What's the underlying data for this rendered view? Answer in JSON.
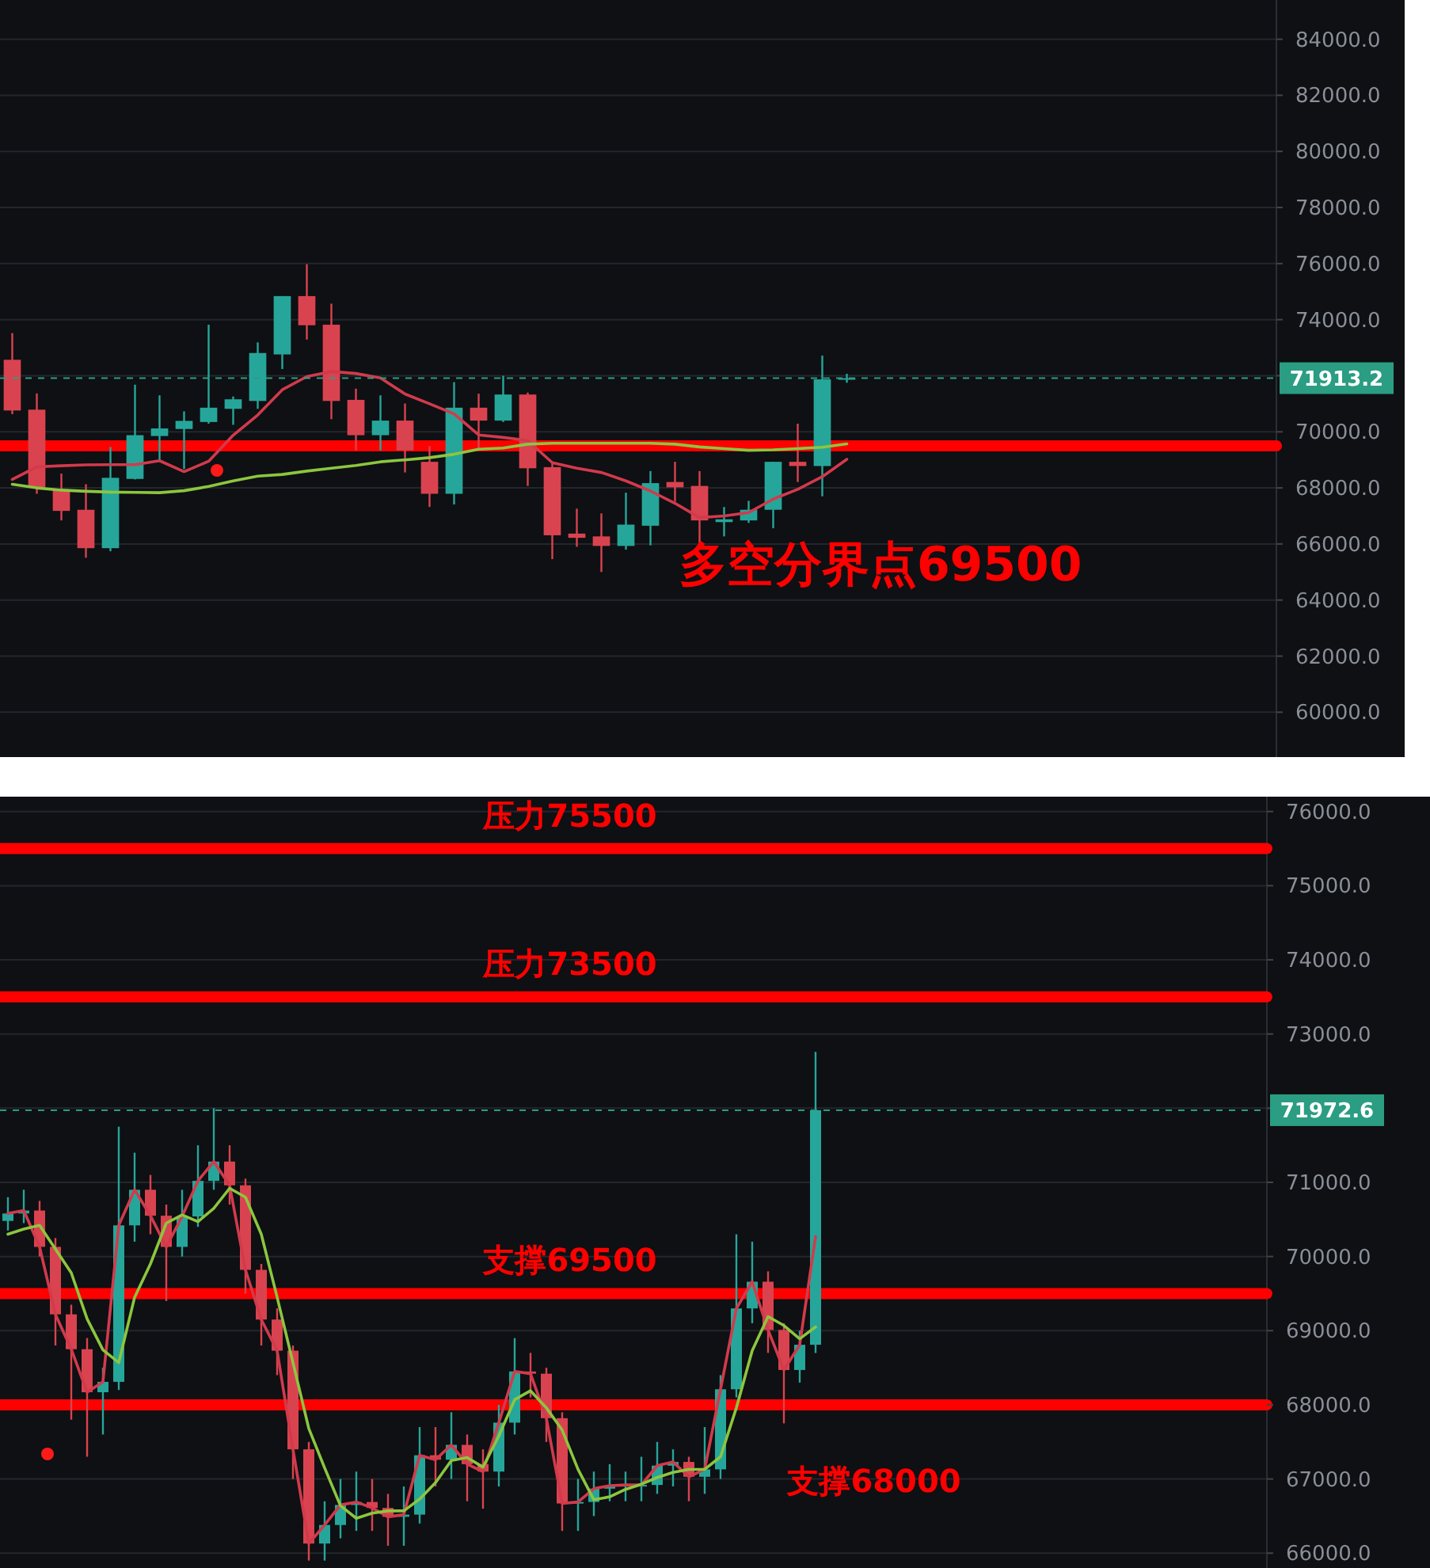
{
  "chart_data": [
    {
      "type": "candlestick",
      "categories": [
        null,
        null,
        null,
        null,
        null,
        null,
        null,
        null,
        null,
        null,
        null,
        null,
        null,
        null,
        null,
        null,
        null,
        null,
        null,
        null,
        null,
        null,
        null,
        null,
        null,
        null,
        null,
        null,
        null,
        null,
        null,
        null,
        null,
        null,
        null,
        null,
        null,
        null,
        null,
        null,
        null,
        null,
        null,
        null,
        null,
        null,
        null,
        null,
        null,
        null,
        null,
        null
      ],
      "ohlc": [
        [
          72570,
          73520,
          70630,
          70760
        ],
        [
          70790,
          71370,
          67790,
          68030
        ],
        [
          67940,
          68510,
          66840,
          67180
        ],
        [
          67220,
          68130,
          65510,
          65850
        ],
        [
          65850,
          69460,
          65740,
          68360
        ],
        [
          68320,
          71680,
          68300,
          69880
        ],
        [
          69850,
          71300,
          68930,
          70120
        ],
        [
          70100,
          70730,
          68670,
          70390
        ],
        [
          70350,
          73820,
          70290,
          70860
        ],
        [
          70820,
          71260,
          70250,
          71160
        ],
        [
          71100,
          73190,
          70820,
          72810
        ],
        [
          72760,
          74840,
          72240,
          74840
        ],
        [
          74840,
          75980,
          73290,
          73800
        ],
        [
          73820,
          74570,
          70450,
          71100
        ],
        [
          71140,
          71540,
          69340,
          69880
        ],
        [
          69880,
          71300,
          69340,
          70400
        ],
        [
          70400,
          71010,
          68550,
          69340
        ],
        [
          68930,
          69490,
          67320,
          67790
        ],
        [
          67790,
          71770,
          67410,
          70860
        ],
        [
          70860,
          71360,
          69340,
          70400
        ],
        [
          70400,
          72000,
          70350,
          71330
        ],
        [
          71330,
          71400,
          68070,
          68700
        ],
        [
          68740,
          68930,
          65460,
          66310
        ],
        [
          66370,
          67260,
          65900,
          66220
        ],
        [
          66270,
          67090,
          65000,
          65930
        ],
        [
          65930,
          67830,
          65800,
          66690
        ],
        [
          66650,
          68600,
          65950,
          68170
        ],
        [
          68210,
          68930,
          67510,
          68020
        ],
        [
          68070,
          68600,
          65900,
          66840
        ],
        [
          66780,
          67320,
          66270,
          66880
        ],
        [
          66840,
          67540,
          66750,
          67220
        ],
        [
          67220,
          68930,
          66560,
          68930
        ],
        [
          68930,
          70290,
          68210,
          68780
        ],
        [
          68780,
          72720,
          67700,
          71870
        ],
        [
          71880,
          72070,
          71750,
          71913.2
        ],
        null,
        null,
        null,
        null,
        null,
        null,
        null,
        null,
        null,
        null,
        null,
        null,
        null,
        null,
        null,
        null,
        null
      ],
      "series": [
        {
          "type": "line",
          "color": "#d23a4c",
          "values": [
            68300,
            68750,
            68790,
            68820,
            68830,
            68830,
            68970,
            68580,
            68950,
            69880,
            70600,
            71500,
            71970,
            72150,
            72080,
            71920,
            71350,
            71000,
            70640,
            69890,
            69800,
            69690,
            68900,
            68700,
            68550,
            68250,
            67890,
            67450,
            66940,
            67000,
            67120,
            67600,
            67950,
            68400,
            69020,
            null,
            null,
            null,
            null,
            null,
            null,
            null,
            null,
            null,
            null,
            null,
            null,
            null,
            null,
            null,
            null,
            null
          ]
        },
        {
          "type": "line",
          "color": "#8cc63f",
          "values": [
            68130,
            68000,
            67920,
            67880,
            67850,
            67840,
            67830,
            67900,
            68050,
            68250,
            68420,
            68480,
            68600,
            68700,
            68800,
            68930,
            69000,
            69080,
            69200,
            69380,
            69420,
            69560,
            69590,
            69590,
            69590,
            69590,
            69590,
            69560,
            69460,
            69400,
            69340,
            69360,
            69400,
            69450,
            69570,
            null,
            null,
            null,
            null,
            null,
            null,
            null,
            null,
            null,
            null,
            null,
            null,
            null,
            null,
            null,
            null,
            null
          ]
        }
      ],
      "ylim": [
        58400,
        85400
      ],
      "yticks": [
        {
          "value": 60000,
          "label": "60000.0"
        },
        {
          "value": 62000,
          "label": "62000.0"
        },
        {
          "value": 64000,
          "label": "64000.0"
        },
        {
          "value": 66000,
          "label": "66000.0"
        },
        {
          "value": 68000,
          "label": "68000.0"
        },
        {
          "value": 70000,
          "label": "70000.0"
        },
        {
          "value": 72000,
          "label": null
        },
        {
          "value": 74000,
          "label": "74000.0"
        },
        {
          "value": 76000,
          "label": "76000.0"
        },
        {
          "value": 78000,
          "label": "78000.0"
        },
        {
          "value": 80000,
          "label": "80000.0"
        },
        {
          "value": 82000,
          "label": "82000.0"
        },
        {
          "value": 84000,
          "label": "84000.0"
        }
      ],
      "ref_lines": [
        {
          "axis": "y",
          "value": 71913.2,
          "label": "71913.2",
          "color": "#2a9d82",
          "line_style": "dashed"
        },
        {
          "axis": "y",
          "value": 69500,
          "label": "多空分界点69500",
          "color": "#ff0000",
          "line_style": "solid"
        }
      ],
      "grid": "y",
      "tick_labels": "y"
    },
    {
      "type": "candlestick",
      "categories": [
        null,
        null,
        null,
        null,
        null,
        null,
        null,
        null,
        null,
        null,
        null,
        null,
        null,
        null,
        null,
        null,
        null,
        null,
        null,
        null,
        null,
        null,
        null,
        null,
        null,
        null,
        null,
        null,
        null,
        null,
        null,
        null,
        null,
        null,
        null,
        null,
        null,
        null,
        null,
        null,
        null,
        null,
        null,
        null,
        null,
        null,
        null,
        null,
        null,
        null,
        null,
        null,
        null,
        null,
        null,
        null,
        null,
        null,
        null,
        null,
        null,
        null,
        null,
        null,
        null,
        null,
        null,
        null,
        null,
        null,
        null,
        null,
        null,
        null,
        null,
        null,
        null,
        null,
        null,
        null
      ],
      "ohlc": [
        [
          70480,
          70800,
          70350,
          70580
        ],
        [
          70580,
          70900,
          70450,
          70620
        ],
        [
          70620,
          70750,
          70000,
          70130
        ],
        [
          70130,
          70250,
          68800,
          69220
        ],
        [
          69220,
          69350,
          67800,
          68750
        ],
        [
          68750,
          68900,
          67300,
          68170
        ],
        [
          68170,
          68500,
          67600,
          68310
        ],
        [
          68310,
          71750,
          68200,
          70420
        ],
        [
          70420,
          71400,
          70200,
          70900
        ],
        [
          70900,
          71100,
          70300,
          70550
        ],
        [
          70550,
          70700,
          69400,
          70130
        ],
        [
          70130,
          70900,
          70000,
          70540
        ],
        [
          70540,
          71500,
          70400,
          71020
        ],
        [
          71020,
          72000,
          70900,
          71280
        ],
        [
          71280,
          71500,
          70700,
          70960
        ],
        [
          70960,
          71050,
          69500,
          69820
        ],
        [
          69820,
          69900,
          68800,
          69150
        ],
        [
          69150,
          69300,
          68400,
          68730
        ],
        [
          68730,
          68800,
          67000,
          67400
        ],
        [
          67400,
          67500,
          65900,
          66130
        ],
        [
          66130,
          66700,
          65900,
          66380
        ],
        [
          66380,
          67000,
          66200,
          66650
        ],
        [
          66650,
          67100,
          66300,
          66690
        ],
        [
          66690,
          67000,
          66300,
          66610
        ],
        [
          66610,
          66800,
          66100,
          66490
        ],
        [
          66490,
          66900,
          66100,
          66520
        ],
        [
          66520,
          67700,
          66400,
          67320
        ],
        [
          67320,
          67700,
          66900,
          67260
        ],
        [
          67260,
          67900,
          67000,
          67460
        ],
        [
          67460,
          67600,
          66700,
          67200
        ],
        [
          67200,
          67400,
          66600,
          67100
        ],
        [
          67100,
          68000,
          66900,
          67760
        ],
        [
          67760,
          68900,
          67600,
          68450
        ],
        [
          68450,
          68700,
          68100,
          68420
        ],
        [
          68420,
          68500,
          67500,
          67820
        ],
        [
          67820,
          67900,
          66300,
          66670
        ],
        [
          66670,
          67000,
          66300,
          66690
        ],
        [
          66690,
          67100,
          66500,
          66870
        ],
        [
          66870,
          67200,
          66700,
          66910
        ],
        [
          66910,
          67100,
          66700,
          66920
        ],
        [
          66920,
          67300,
          66700,
          66920
        ],
        [
          66920,
          67500,
          66800,
          67180
        ],
        [
          67180,
          67400,
          66900,
          67230
        ],
        [
          67230,
          67300,
          66700,
          67030
        ],
        [
          67030,
          67700,
          66800,
          67130
        ],
        [
          67130,
          68400,
          67000,
          68210
        ],
        [
          68210,
          70300,
          68100,
          69300
        ],
        [
          69300,
          70200,
          69100,
          69660
        ],
        [
          69660,
          69800,
          68700,
          69010
        ],
        [
          69010,
          69100,
          67750,
          68470
        ],
        [
          68470,
          69000,
          68300,
          68810
        ],
        [
          68810,
          72760,
          68700,
          71972.6
        ],
        null,
        null,
        null,
        null,
        null,
        null,
        null,
        null,
        null,
        null,
        null,
        null,
        null,
        null,
        null,
        null,
        null,
        null,
        null,
        null,
        null,
        null,
        null,
        null,
        null,
        null,
        null,
        null
      ],
      "series": [
        {
          "type": "line",
          "color": "#d23a4c",
          "values": [
            70580,
            70620,
            70130,
            69220,
            68750,
            68170,
            68310,
            70420,
            70900,
            70550,
            70130,
            70540,
            71020,
            71280,
            70960,
            69820,
            69150,
            68730,
            67400,
            66130,
            66380,
            66650,
            66690,
            66610,
            66490,
            66520,
            67320,
            67260,
            67460,
            67200,
            67100,
            67760,
            68450,
            68420,
            67820,
            66670,
            66690,
            66870,
            66910,
            66920,
            66920,
            67180,
            67230,
            67030,
            67130,
            68210,
            69300,
            69660,
            69010,
            68470,
            68810,
            70270,
            null,
            null,
            null,
            null,
            null,
            null,
            null,
            null,
            null,
            null,
            null,
            null,
            null,
            null,
            null,
            null,
            null,
            null,
            null,
            null,
            null,
            null,
            null,
            null,
            null,
            null,
            null,
            null
          ]
        },
        {
          "type": "line",
          "color": "#8cc63f",
          "values": [
            70300,
            70370,
            70420,
            70100,
            69780,
            69160,
            68740,
            68570,
            69450,
            69900,
            70450,
            70560,
            70470,
            70650,
            70920,
            70800,
            70300,
            69450,
            68570,
            67680,
            67150,
            66640,
            66470,
            66540,
            66570,
            66570,
            66730,
            66950,
            67250,
            67290,
            67160,
            67580,
            68070,
            68190,
            67960,
            67660,
            67130,
            66720,
            66760,
            66860,
            66930,
            67020,
            67090,
            67130,
            67130,
            67300,
            67960,
            68730,
            69190,
            69070,
            68890,
            69050,
            null,
            null,
            null,
            null,
            null,
            null,
            null,
            null,
            null,
            null,
            null,
            null,
            null,
            null,
            null,
            null,
            null,
            null,
            null,
            null,
            null,
            null,
            null,
            null,
            null,
            null,
            null,
            null
          ]
        }
      ],
      "ylim": [
        65800,
        76200
      ],
      "yticks": [
        {
          "value": 66000,
          "label": "66000.0"
        },
        {
          "value": 67000,
          "label": "67000.0"
        },
        {
          "value": 68000,
          "label": "68000.0"
        },
        {
          "value": 69000,
          "label": "69000.0"
        },
        {
          "value": 70000,
          "label": "70000.0"
        },
        {
          "value": 71000,
          "label": "71000.0"
        },
        {
          "value": 72000,
          "label": null
        },
        {
          "value": 73000,
          "label": "73000.0"
        },
        {
          "value": 74000,
          "label": "74000.0"
        },
        {
          "value": 75000,
          "label": "75000.0"
        },
        {
          "value": 76000,
          "label": "76000.0"
        }
      ],
      "ref_lines": [
        {
          "axis": "y",
          "value": 75500,
          "label": "压力75500",
          "color": "#ff0000",
          "line_style": "solid"
        },
        {
          "axis": "y",
          "value": 73500,
          "label": "压力73500",
          "color": "#ff0000",
          "line_style": "solid"
        },
        {
          "axis": "y",
          "value": 71972.6,
          "label": "71972.6",
          "color": "#2a9d82",
          "line_style": "dashed"
        },
        {
          "axis": "y",
          "value": 69500,
          "label": "支撑69500",
          "color": "#ff0000",
          "line_style": "solid"
        },
        {
          "axis": "y",
          "value": 68000,
          "label": "支撑68000",
          "color": "#ff0000",
          "line_style": "solid"
        }
      ],
      "grid": "y",
      "tick_labels": "y"
    }
  ]
}
